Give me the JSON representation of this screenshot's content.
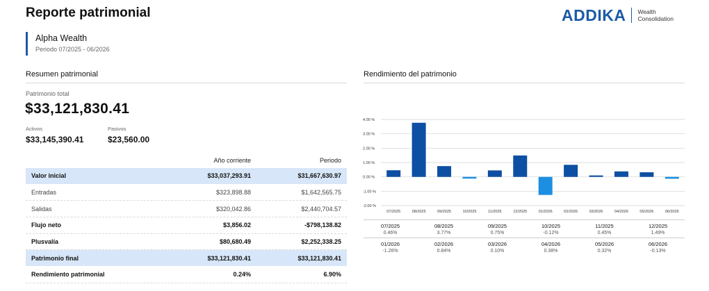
{
  "header": {
    "title": "Reporte patrimonial",
    "logo_text": "ADDIKA",
    "logo_sub_1": "Wealth",
    "logo_sub_2": "Consolidation"
  },
  "client": {
    "name": "Alpha Wealth",
    "period": "Periodo 07/2025 - 06/2026"
  },
  "summary": {
    "section_title": "Resumen patrimonial",
    "total_label": "Patrimonio total",
    "total_value": "$33,121,830.41",
    "assets_label": "Activos",
    "assets_value": "$33,145,390.41",
    "liabilities_label": "Pasivos",
    "liabilities_value": "$23,560.00",
    "columns": [
      "Año corriente",
      "Periodo"
    ],
    "rows": [
      {
        "label": "Valor inicial",
        "ytd": "$33,037,293.91",
        "period": "$31,667,630.97"
      },
      {
        "label": "Entradas",
        "ytd": "$323,898.88",
        "period": "$1,642,565.75"
      },
      {
        "label": "Salidas",
        "ytd": "$320,042.86",
        "period": "$2,440,704.57"
      },
      {
        "label": "Flujo neto",
        "ytd": "$3,856.02",
        "period": "-$798,138.82"
      },
      {
        "label": "Plusvalía",
        "ytd": "$80,680.49",
        "period": "$2,252,338.25"
      },
      {
        "label": "Patrimonio final",
        "ytd": "$33,121,830.41",
        "period": "$33,121,830.41"
      },
      {
        "label": "Rendimiento patrimonial",
        "ytd": "0.24%",
        "period": "6.90%"
      }
    ]
  },
  "performance": {
    "section_title": "Rendimiento del patrimonio",
    "months_row_1": [
      {
        "month": "07/2025",
        "value": "0.46%"
      },
      {
        "month": "08/2025",
        "value": "3.77%"
      },
      {
        "month": "09/2025",
        "value": "0.75%"
      },
      {
        "month": "10/2025",
        "value": "-0.12%"
      },
      {
        "month": "11/2025",
        "value": "0.45%"
      },
      {
        "month": "12/2025",
        "value": "1.49%"
      }
    ],
    "months_row_2": [
      {
        "month": "01/2026",
        "value": "-1.26%"
      },
      {
        "month": "02/2026",
        "value": "0.84%"
      },
      {
        "month": "03/2026",
        "value": "0.10%"
      },
      {
        "month": "04/2026",
        "value": "0.38%"
      },
      {
        "month": "05/2026",
        "value": "0.32%"
      },
      {
        "month": "06/2026",
        "value": "-0.13%"
      }
    ]
  },
  "chart_data": {
    "type": "bar",
    "title": "",
    "xlabel": "",
    "ylabel": "",
    "categories": [
      "07/2025",
      "08/2025",
      "09/2025",
      "10/2025",
      "11/2025",
      "12/2025",
      "01/2026",
      "02/2026",
      "03/2026",
      "04/2026",
      "05/2026",
      "06/2026"
    ],
    "values": [
      0.46,
      3.77,
      0.75,
      -0.12,
      0.45,
      1.49,
      -1.26,
      0.84,
      0.1,
      0.38,
      0.32,
      -0.13
    ],
    "ylim": [
      -2,
      4
    ],
    "yticks": [
      "-2.00 %",
      "-1.00 %",
      "0.00 %",
      "1.00 %",
      "2.00 %",
      "3.00 %",
      "4.00 %"
    ],
    "grid": true,
    "colors": {
      "positive": "#0d4fa3",
      "negative": "#1d8fe0",
      "highlight": "#1d8fe0",
      "grid": "#d0d0d0"
    },
    "highlight_index": 6
  },
  "colors": {
    "accent": "#1b5aa6",
    "row_highlight": "#d7e6f8"
  }
}
